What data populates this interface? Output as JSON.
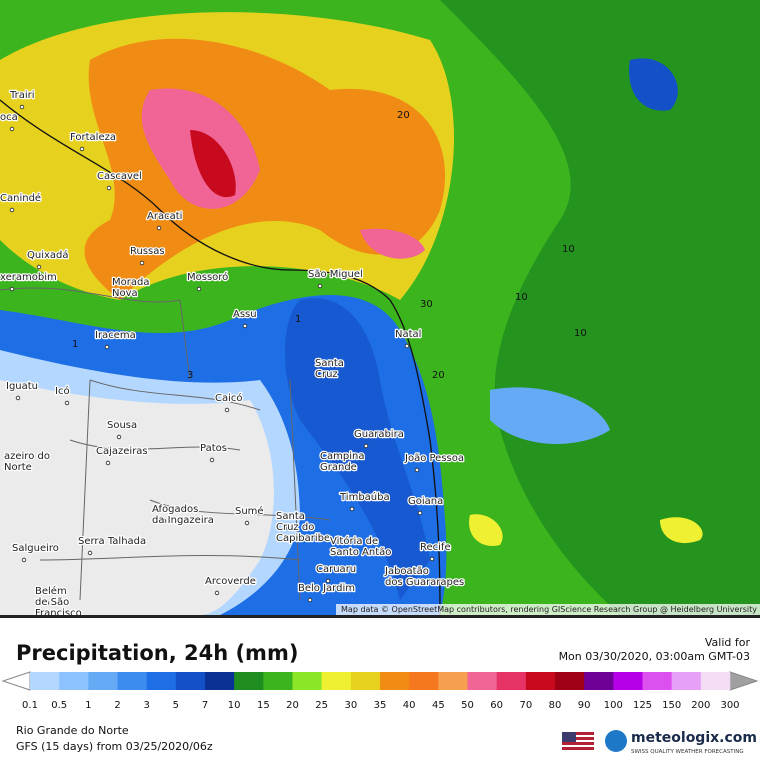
{
  "map": {
    "attribution": "Map data © OpenStreetMap contributors, rendering GIScience Research Group @ Heidelberg University",
    "places": [
      {
        "lines": [
          "Trairi"
        ]
      },
      {
        "lines": [
          "oca"
        ]
      },
      {
        "lines": [
          "Fortaleza"
        ]
      },
      {
        "lines": [
          "Cascavel"
        ]
      },
      {
        "lines": [
          "Canindé"
        ]
      },
      {
        "lines": [
          "Aracati"
        ]
      },
      {
        "lines": [
          "Quixadá"
        ]
      },
      {
        "lines": [
          "Russas"
        ]
      },
      {
        "lines": [
          "xeramobim"
        ]
      },
      {
        "lines": [
          "Morada",
          "Nova"
        ]
      },
      {
        "lines": [
          "Mossoró"
        ]
      },
      {
        "lines": [
          "São Miguel"
        ]
      },
      {
        "lines": [
          "Assu"
        ]
      },
      {
        "lines": [
          "Iracema"
        ]
      },
      {
        "lines": [
          "Natal"
        ]
      },
      {
        "lines": [
          "Santa",
          "Cruz"
        ]
      },
      {
        "lines": [
          "Iguatu"
        ]
      },
      {
        "lines": [
          "Icó"
        ]
      },
      {
        "lines": [
          "Caicó"
        ]
      },
      {
        "lines": [
          "Sousa"
        ]
      },
      {
        "lines": [
          "Cajazeiras"
        ]
      },
      {
        "lines": [
          "Patos"
        ]
      },
      {
        "lines": [
          "Guarabira"
        ]
      },
      {
        "lines": [
          "azeiro do",
          "Norte"
        ]
      },
      {
        "lines": [
          "Campina",
          "Grande"
        ]
      },
      {
        "lines": [
          "João Pessoa"
        ]
      },
      {
        "lines": [
          "Timbaúba"
        ]
      },
      {
        "lines": [
          "Goiana"
        ]
      },
      {
        "lines": [
          "Afogados",
          "da Ingazeira"
        ]
      },
      {
        "lines": [
          "Sumé"
        ]
      },
      {
        "lines": [
          "Santa",
          "Cruz do",
          "Capibaribe"
        ]
      },
      {
        "lines": [
          "Salgueiro"
        ]
      },
      {
        "lines": [
          "Serra Talhada"
        ]
      },
      {
        "lines": [
          "Vitória de",
          "Santo Antão"
        ]
      },
      {
        "lines": [
          "Recife"
        ]
      },
      {
        "lines": [
          "Caruaru"
        ]
      },
      {
        "lines": [
          "Jaboatão",
          "dos Guararapes"
        ]
      },
      {
        "lines": [
          "Arcoverde"
        ]
      },
      {
        "lines": [
          "Belo Jardim"
        ]
      },
      {
        "lines": [
          "Belém",
          "de São",
          "Francisco"
        ]
      }
    ],
    "contour_labels": [
      "20",
      "10",
      "10",
      "10",
      "30",
      "20",
      "1",
      "1",
      "3"
    ]
  },
  "header": {
    "title": "Precipitation, 24h (mm)",
    "valid_label": "Valid for",
    "valid_time": "Mon 03/30/2020, 03:00am GMT-03"
  },
  "legend": {
    "ticks": [
      0.1,
      0.5,
      1,
      2,
      3,
      5,
      7,
      10,
      15,
      20,
      25,
      30,
      35,
      40,
      45,
      50,
      60,
      70,
      80,
      90,
      100,
      125,
      150,
      200,
      300
    ],
    "colors": [
      "#b4d7ff",
      "#8cc3ff",
      "#64aaf5",
      "#3c8cf0",
      "#1e6ee6",
      "#1450c8",
      "#0a3296",
      "#1e8c1e",
      "#3cb41e",
      "#8ce628",
      "#f0f032",
      "#e6d21e",
      "#f08c14",
      "#f5781e",
      "#f5a050",
      "#f06496",
      "#e63264",
      "#c80a1e",
      "#a00014",
      "#6e0096",
      "#b400e6",
      "#dc50f0",
      "#e6a0f5",
      "#f5dcf5"
    ],
    "under_color": "#ffffff",
    "over_color": "#a0a0a0"
  },
  "footer": {
    "region": "Rio Grande do Norte",
    "model": "GFS (15 days) from 03/25/2020/06z",
    "brand": "meteologix.com",
    "tagline": "SWISS QUALITY WEATHER FORECASTING"
  }
}
